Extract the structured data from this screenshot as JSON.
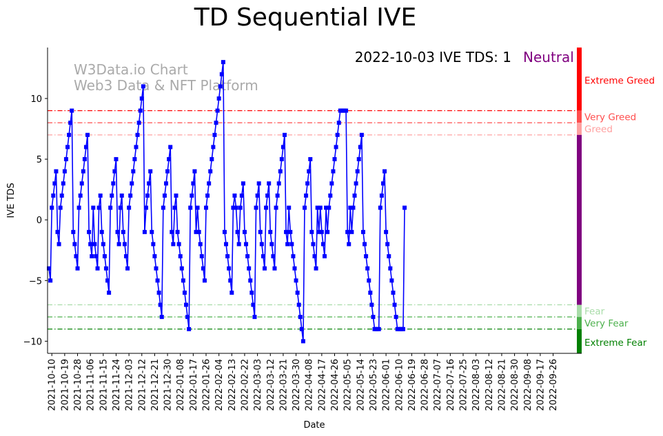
{
  "chart_data": {
    "type": "line",
    "title": "TD Sequential IVE",
    "xlabel": "Date",
    "ylabel": "IVE TDS",
    "ylim": [
      -11,
      14.2
    ],
    "yticks": [
      -10,
      -5,
      0,
      5,
      10
    ],
    "xlim_days": [
      -1,
      373
    ],
    "x_ticks": [
      "2021-10-10",
      "2021-10-19",
      "2021-10-28",
      "2021-11-06",
      "2021-11-15",
      "2021-11-24",
      "2021-12-03",
      "2021-12-12",
      "2021-12-21",
      "2021-12-30",
      "2022-01-08",
      "2022-01-17",
      "2022-01-26",
      "2022-02-04",
      "2022-02-13",
      "2022-02-22",
      "2022-03-03",
      "2022-03-12",
      "2022-03-21",
      "2022-03-30",
      "2022-04-08",
      "2022-04-17",
      "2022-04-26",
      "2022-05-05",
      "2022-05-14",
      "2022-05-23",
      "2022-06-01",
      "2022-06-10",
      "2022-06-19",
      "2022-06-28",
      "2022-07-07",
      "2022-07-16",
      "2022-07-25",
      "2022-08-03",
      "2022-08-12",
      "2022-08-21",
      "2022-08-30",
      "2022-09-08",
      "2022-09-17",
      "2022-09-26"
    ],
    "start_date": "2021-10-08",
    "series": [
      {
        "name": "IVE TDS",
        "color": "#0000ff",
        "marker": "square",
        "values": [
          -4,
          -5,
          1,
          2,
          3,
          4,
          -1,
          -2,
          1,
          2,
          3,
          4,
          5,
          6,
          7,
          8,
          9,
          -1,
          -2,
          -3,
          -4,
          1,
          2,
          3,
          4,
          5,
          6,
          7,
          -1,
          -2,
          -3,
          1,
          -2,
          -3,
          -4,
          1,
          2,
          -1,
          -2,
          -3,
          -4,
          -5,
          -6,
          1,
          2,
          3,
          4,
          5,
          -1,
          -2,
          1,
          2,
          -1,
          -2,
          -3,
          -4,
          1,
          2,
          3,
          4,
          5,
          6,
          7,
          8,
          9,
          10,
          11,
          -1,
          1,
          2,
          3,
          4,
          -1,
          -2,
          -3,
          -4,
          -5,
          -6,
          -7,
          -8,
          1,
          2,
          3,
          4,
          5,
          6,
          -1,
          -2,
          1,
          2,
          -1,
          -2,
          -3,
          -4,
          -5,
          -6,
          -7,
          -8,
          -9,
          1,
          2,
          3,
          4,
          -1,
          1,
          -1,
          -2,
          -3,
          -4,
          -5,
          1,
          2,
          3,
          4,
          5,
          6,
          7,
          8,
          9,
          10,
          11,
          12,
          13,
          -1,
          -2,
          -3,
          -4,
          -5,
          -6,
          1,
          2,
          1,
          -1,
          -2,
          1,
          2,
          3,
          -1,
          -2,
          -3,
          -4,
          -5,
          -6,
          -7,
          -8,
          1,
          2,
          3,
          -1,
          -2,
          -3,
          -4,
          1,
          2,
          3,
          -1,
          -2,
          -3,
          -4,
          1,
          2,
          3,
          4,
          5,
          6,
          7,
          -1,
          -2,
          1,
          -1,
          -2,
          -3,
          -4,
          -5,
          -6,
          -7,
          -8,
          -9,
          -10,
          1,
          2,
          3,
          4,
          5,
          -1,
          -2,
          -3,
          -4,
          1,
          -1,
          1,
          -1,
          -2,
          -3,
          1,
          -1,
          1,
          2,
          3,
          4,
          5,
          6,
          7,
          8,
          9,
          9,
          9,
          9,
          9,
          -1,
          -2,
          1,
          -1,
          1,
          2,
          3,
          4,
          5,
          6,
          7,
          -1,
          -2,
          -3,
          -4,
          -5,
          -6,
          -7,
          -8,
          -9,
          -9,
          -9,
          -9,
          1,
          2,
          3,
          4,
          -1,
          -2,
          -3,
          -4,
          -5,
          -6,
          -7,
          -8,
          -9,
          -9,
          -9,
          -9,
          -9,
          1
        ]
      }
    ],
    "reference_lines": [
      {
        "name": "Extreme Greed",
        "value": 9,
        "color": "#ff0000"
      },
      {
        "name": "Very Greed",
        "value": 8,
        "color": "#ff4d4d"
      },
      {
        "name": "Greed",
        "value": 7,
        "color": "#ffa0a0"
      },
      {
        "name": "Fear",
        "value": -7,
        "color": "#a8dca8"
      },
      {
        "name": "Very Fear",
        "value": -8,
        "color": "#4cb04c"
      },
      {
        "name": "Extreme Fear",
        "value": -9,
        "color": "#008000"
      }
    ],
    "zone_labels": [
      {
        "text": "Extreme Greed",
        "value": 11.5,
        "color": "#ff0000"
      },
      {
        "text": "Very Greed",
        "value": 8.5,
        "color": "#ff4d4d"
      },
      {
        "text": "Greed",
        "value": 7.5,
        "color": "#ffa0a0"
      },
      {
        "text": "Fear",
        "value": -7.5,
        "color": "#a8dca8"
      },
      {
        "text": "Very Fear",
        "value": -8.5,
        "color": "#4cb04c"
      },
      {
        "text": "Extreme Fear",
        "value": -10.1,
        "color": "#008000"
      }
    ],
    "color_bar": [
      {
        "from": 9,
        "to": 14.2,
        "color": "#ff0000"
      },
      {
        "from": 8,
        "to": 9,
        "color": "#ff4d4d"
      },
      {
        "from": 7,
        "to": 8,
        "color": "#ffa0a0"
      },
      {
        "from": -7,
        "to": 7,
        "color": "#800080"
      },
      {
        "from": -8,
        "to": -7,
        "color": "#a8dca8"
      },
      {
        "from": -9,
        "to": -8,
        "color": "#4cb04c"
      },
      {
        "from": -11,
        "to": -9,
        "color": "#008000"
      }
    ],
    "status": {
      "label": "2022-10-03 IVE TDS: 1",
      "sentiment": "Neutral",
      "sentiment_color": "#800080"
    },
    "watermark": [
      "W3Data.io Chart",
      "Web3 Data & NFT Platform"
    ]
  }
}
